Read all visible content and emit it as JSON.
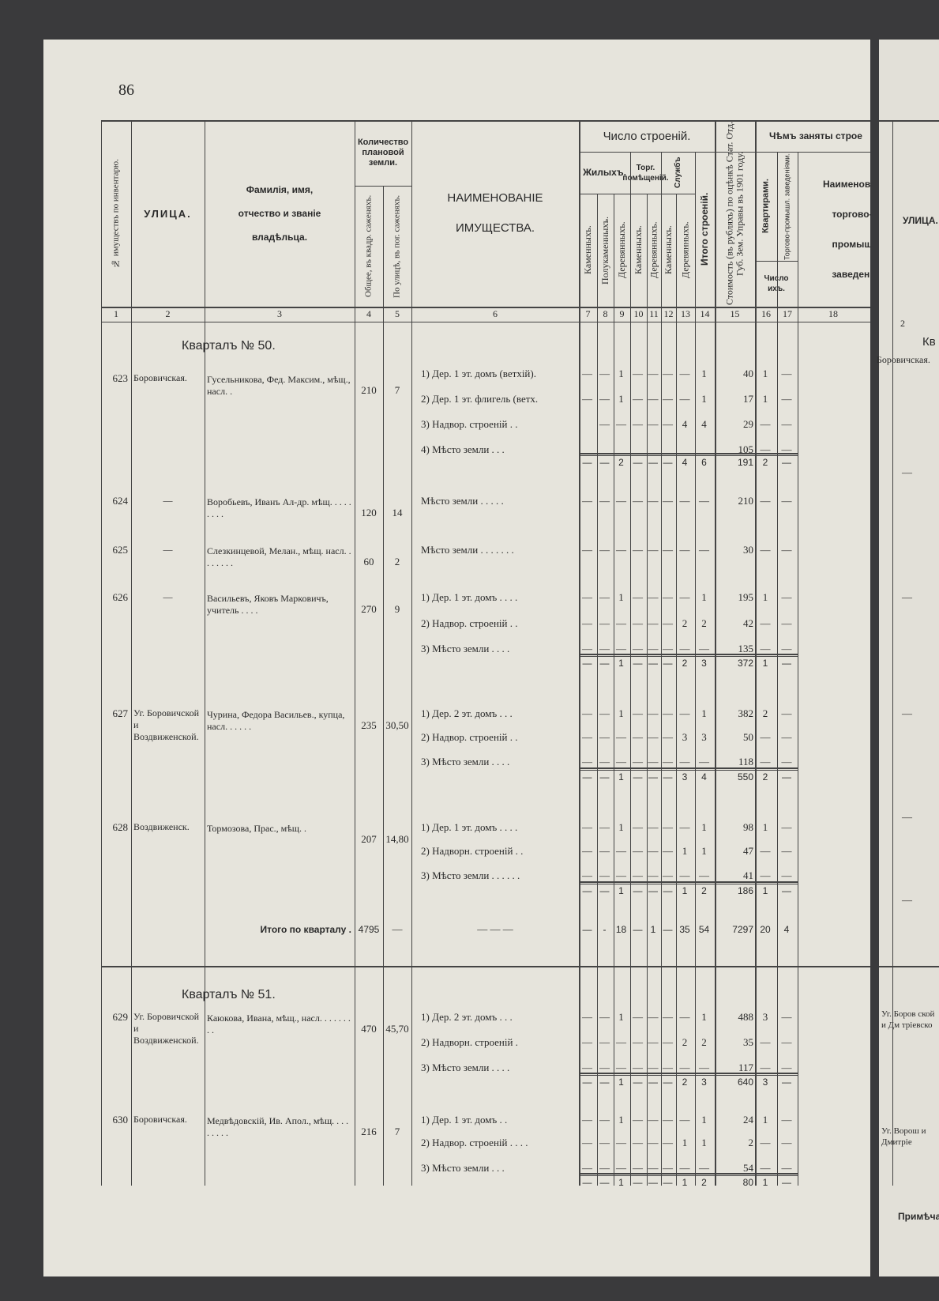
{
  "page_number": "86",
  "header": {
    "inventory_no": "№ имуществъ по инвентарю.",
    "street": "УЛИЦА.",
    "owner": "Фамилія, имя, отчество и званіе владѣльца.",
    "land_group": "Количество плановой земли.",
    "land_total": "Общее, въ квадр. саженяхъ.",
    "land_street": "По улицѣ, въ пог. саженяхъ.",
    "property": "НАИМЕНОВАНІЕ ИМУЩЕСТВА.",
    "buildings_group": "Число строеній.",
    "residential": "Жилыхъ.",
    "trade": "Торг. помѣщеній.",
    "service": "Службъ",
    "building_cols": [
      "Каменныхъ.",
      "Полукаменныхъ.",
      "Деревянныхъ.",
      "Каменныхъ.",
      "Деревянныхъ.",
      "Каменныхъ.",
      "Деревянныхъ."
    ],
    "buildings_total": "Итого строеній.",
    "value": "Стоимость (въ рубляхъ) по оцѣнкѣ Стат. Отд. Губ. Зем. Управы въ 1901 году.",
    "occupied_group": "Чѣмъ заняты строе",
    "apartments": "Квартирами.",
    "establishments": "Торгово-промышл. заведеніями.",
    "count": "Число ихъ.",
    "establishment_name": "Наименован торгово-промыш заведені"
  },
  "column_numbers": [
    "1",
    "2",
    "3",
    "4",
    "5",
    "6",
    "7",
    "8",
    "9",
    "10",
    "11",
    "12",
    "13",
    "14",
    "15",
    "16",
    "17",
    "18"
  ],
  "sections": [
    {
      "title": "Кварталъ № 50.",
      "entries": [
        {
          "number": "623",
          "street": "Боровичская.",
          "owner": "Гусельникова, Фед. Максим., мѣщ., насл. .",
          "area_total": "210",
          "area_street": "7",
          "items": [
            {
              "property": "1) Дер. 1 эт. домъ (ветхій).",
              "cells": [
                "—",
                "—",
                "1",
                "—",
                "—",
                "—",
                "—",
                "1",
                "40",
                "1",
                "—"
              ]
            },
            {
              "property": "2) Дер. 1 эт. флигель (ветх.",
              "cells": [
                "—",
                "—",
                "1",
                "—",
                "—",
                "—",
                "—",
                "1",
                "17",
                "1",
                "—"
              ]
            },
            {
              "property": "3) Надвор. строеній . .",
              "cells": [
                null,
                "—",
                "—",
                "—",
                "—",
                "—",
                "4",
                "4",
                "29",
                "—",
                "—"
              ]
            },
            {
              "property": "4) Мѣсто земли . . .",
              "cells": [
                null,
                null,
                null,
                null,
                null,
                null,
                null,
                null,
                "105",
                "—",
                "—"
              ]
            }
          ],
          "total": [
            "—",
            "—",
            "2",
            "—",
            "—",
            "—",
            "4",
            "6",
            "191",
            "2",
            "—"
          ]
        },
        {
          "number": "624",
          "street": "—",
          "owner": "Воробьевъ, Иванъ Ал-др. мѣщ. . . . . . . . .",
          "area_total": "120",
          "area_street": "14",
          "items": [
            {
              "property": "Мѣсто земли . . . . .",
              "cells": [
                "—",
                "—",
                "—",
                "—",
                "—",
                "—",
                "—",
                "—",
                "210",
                "—",
                "—"
              ]
            }
          ]
        },
        {
          "number": "625",
          "street": "—",
          "owner": "Слезкинцевой, Мелан., мѣщ. насл. . . . . . . .",
          "area_total": "60",
          "area_street": "2",
          "items": [
            {
              "property": "Мѣсто земли . . . . . . .",
              "cells": [
                "—",
                "—",
                "—",
                "—",
                "—",
                "—",
                "—",
                "—",
                "30",
                "—",
                "—"
              ]
            }
          ]
        },
        {
          "number": "626",
          "street": "—",
          "owner": "Васильевъ, Яковъ Марковичъ, учитель . . . .",
          "area_total": "270",
          "area_street": "9",
          "items": [
            {
              "property": "1) Дер. 1 эт. домъ . . . .",
              "cells": [
                "—",
                "—",
                "1",
                "—",
                "—",
                "—",
                "—",
                "1",
                "195",
                "1",
                "—"
              ]
            },
            {
              "property": "2) Надвор. строеній . .",
              "cells": [
                "—",
                "—",
                "—",
                "—",
                "—",
                "—",
                "2",
                "2",
                "42",
                "—",
                "—"
              ]
            },
            {
              "property": "3) Мѣсто земли . . . .",
              "cells": [
                "—",
                "—",
                "—",
                "—",
                "—",
                "—",
                "—",
                "—",
                "135",
                "—",
                "—"
              ]
            }
          ],
          "total": [
            "—",
            "—",
            "1",
            "—",
            "—",
            "—",
            "2",
            "3",
            "372",
            "1",
            "—"
          ]
        },
        {
          "number": "627",
          "street": "Уг. Боровичской и Воздвиженской.",
          "owner": "Чурина, Федора Васильев., купца, насл. . . . . .",
          "area_total": "235",
          "area_street": "30,50",
          "items": [
            {
              "property": "1) Дер. 2 эт. домъ . . .",
              "cells": [
                "—",
                "—",
                "1",
                "—",
                "—",
                "—",
                "—",
                "1",
                "382",
                "2",
                "—"
              ]
            },
            {
              "property": "2) Надвор. строеній . .",
              "cells": [
                "—",
                "—",
                "—",
                "—",
                "—",
                "—",
                "3",
                "3",
                "50",
                "—",
                "—"
              ]
            },
            {
              "property": "3) Мѣсто земли . . . .",
              "cells": [
                "—",
                "—",
                "—",
                "—",
                "—",
                "—",
                "—",
                "—",
                "118",
                "—",
                "—"
              ]
            }
          ],
          "total": [
            "—",
            "—",
            "1",
            "—",
            "—",
            "—",
            "3",
            "4",
            "550",
            "2",
            "—"
          ]
        },
        {
          "number": "628",
          "street": "Воздвиженск.",
          "owner": "Тормозова, Прас., мѣщ. .",
          "area_total": "207",
          "area_street": "14,80",
          "items": [
            {
              "property": "1) Дер. 1 эт. домъ . . . .",
              "cells": [
                "—",
                "—",
                "1",
                "—",
                "—",
                "—",
                "—",
                "1",
                "98",
                "1",
                "—"
              ]
            },
            {
              "property": "2) Надворн. строеній . .",
              "cells": [
                "—",
                "—",
                "—",
                "—",
                "—",
                "—",
                "1",
                "1",
                "47",
                "—",
                "—"
              ]
            },
            {
              "property": "3) Мѣсто земли . . . . . .",
              "cells": [
                "—",
                "—",
                "—",
                "—",
                "—",
                "—",
                "—",
                "—",
                "41",
                "—",
                "—"
              ]
            }
          ],
          "total": [
            "—",
            "—",
            "1",
            "—",
            "—",
            "—",
            "1",
            "2",
            "186",
            "1",
            "—"
          ]
        }
      ],
      "quarter_total": {
        "label": "Итого по кварталу .",
        "area_total": "4795",
        "area_street": "—",
        "property": "— — —",
        "cells": [
          "—",
          "-",
          "18",
          "—",
          "1",
          "—",
          "35",
          "54",
          "7297",
          "20",
          "4"
        ]
      }
    },
    {
      "title": "Кварталъ № 51.",
      "entries": [
        {
          "number": "629",
          "street": "Уг. Боровичской и Воздвиженской.",
          "owner": "Каюкова, Ивана, мѣщ., насл. . . . . . . . .",
          "area_total": "470",
          "area_street": "45,70",
          "items": [
            {
              "property": "1) Дер. 2 эт. домъ . . .",
              "cells": [
                "—",
                "—",
                "1",
                "—",
                "—",
                "—",
                "—",
                "1",
                "488",
                "3",
                "—"
              ]
            },
            {
              "property": "2) Надворн. строеній .",
              "cells": [
                "—",
                "—",
                "—",
                "—",
                "—",
                "—",
                "2",
                "2",
                "35",
                "—",
                "—"
              ]
            },
            {
              "property": "3) Мѣсто земли . . . .",
              "cells": [
                "—",
                "—",
                "—",
                "—",
                "—",
                "—",
                "—",
                "—",
                "117",
                "—",
                "—"
              ]
            }
          ],
          "total": [
            "—",
            "—",
            "1",
            "—",
            "—",
            "—",
            "2",
            "3",
            "640",
            "3",
            "—"
          ]
        },
        {
          "number": "630",
          "street": "Боровичская.",
          "owner": "Медвѣдовскій, Ив. Апол., мѣщ. . . . . . . . .",
          "area_total": "216",
          "area_street": "7",
          "items": [
            {
              "property": "1) Дер. 1 эт. домъ . .",
              "cells": [
                "—",
                "—",
                "1",
                "—",
                "—",
                "—",
                "—",
                "1",
                "24",
                "1",
                "—"
              ]
            },
            {
              "property": "2) Надвор. строеній . . . .",
              "cells": [
                "—",
                "—",
                "—",
                "—",
                "—",
                "—",
                "1",
                "1",
                "2",
                "—",
                "—"
              ]
            },
            {
              "property": "3) Мѣсто земли . . .",
              "cells": [
                "—",
                "—",
                "—",
                "—",
                "—",
                "—",
                "—",
                "—",
                "54",
                "—",
                "—"
              ]
            }
          ],
          "total": [
            "—",
            "—",
            "1",
            "—",
            "—",
            "—",
            "1",
            "2",
            "80",
            "1",
            "—"
          ]
        }
      ]
    }
  ],
  "right_page": {
    "street": "УЛИЦА.",
    "column_number": "2",
    "quarter": "Кв",
    "street_1": "Боровичская.",
    "dashes": [
      "—",
      "—",
      "—",
      "—",
      "—"
    ],
    "street_2": "Уг. Боров ской и Дм тріевско",
    "street_3": "Уг. Ворош и Дмитріе",
    "note": "Примѣча"
  }
}
